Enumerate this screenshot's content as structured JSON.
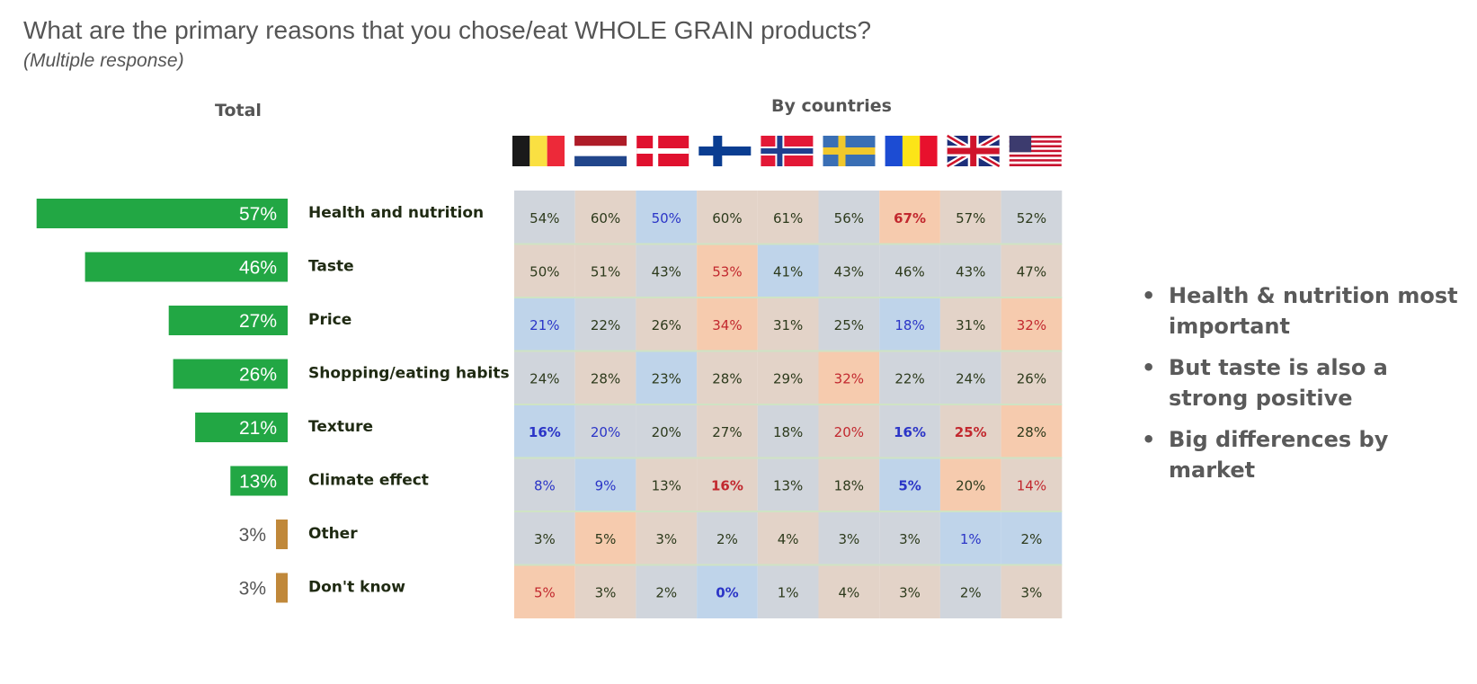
{
  "title": "What are the primary reasons that you chose/eat WHOLE GRAIN products?",
  "subtitle": "(Multiple response)",
  "total_header": "Total",
  "countries_header": "By countries",
  "flags": [
    "belgium-flag",
    "netherlands-flag",
    "denmark-flag",
    "finland-flag",
    "norway-flag",
    "sweden-flag",
    "romania-flag",
    "uk-flag",
    "usa-flag"
  ],
  "bullets": [
    "Health & nutrition most important",
    "But taste is also a strong positive",
    "Big differences by market"
  ],
  "colors": {
    "bar_main": "#22a744",
    "bar_small": "#c0883a",
    "cell_gray": "#d0d5dc",
    "cell_tan": "#e3d3c8",
    "cell_blue": "#bfd4ea",
    "cell_orange": "#f6cbae",
    "text_dark": "#2d3a1c",
    "text_blue": "#2b35c7",
    "text_red": "#c2282e",
    "label_dark": "#1f2a12"
  },
  "chart_data": {
    "type": "bar",
    "categories": [
      "Health and nutrition",
      "Taste",
      "Price",
      "Shopping/eating habits",
      "Texture",
      "Climate effect",
      "Other",
      "Don't know"
    ],
    "values": [
      57,
      46,
      27,
      26,
      21,
      13,
      3,
      3
    ],
    "value_labels": [
      "57%",
      "46%",
      "27%",
      "26%",
      "21%",
      "13%",
      "3%",
      "3%"
    ],
    "table": {
      "rows": [
        [
          "54%",
          "60%",
          "50%",
          "60%",
          "61%",
          "56%",
          "67%",
          "57%",
          "52%"
        ],
        [
          "50%",
          "51%",
          "43%",
          "53%",
          "41%",
          "43%",
          "46%",
          "43%",
          "47%"
        ],
        [
          "21%",
          "22%",
          "26%",
          "34%",
          "31%",
          "25%",
          "18%",
          "31%",
          "32%"
        ],
        [
          "24%",
          "28%",
          "23%",
          "28%",
          "29%",
          "32%",
          "22%",
          "24%",
          "26%"
        ],
        [
          "16%",
          "20%",
          "20%",
          "27%",
          "18%",
          "20%",
          "16%",
          "25%",
          "28%"
        ],
        [
          "8%",
          "9%",
          "13%",
          "16%",
          "13%",
          "18%",
          "5%",
          "20%",
          "14%"
        ],
        [
          "3%",
          "5%",
          "3%",
          "2%",
          "4%",
          "3%",
          "3%",
          "1%",
          "2%"
        ],
        [
          "5%",
          "3%",
          "2%",
          "0%",
          "1%",
          "4%",
          "3%",
          "2%",
          "3%"
        ]
      ],
      "bg": [
        [
          "g",
          "t",
          "b",
          "t",
          "t",
          "g",
          "o",
          "t",
          "g"
        ],
        [
          "t",
          "t",
          "g",
          "o",
          "b",
          "g",
          "g",
          "g",
          "t"
        ],
        [
          "b",
          "g",
          "t",
          "o",
          "t",
          "g",
          "b",
          "t",
          "o"
        ],
        [
          "g",
          "t",
          "b",
          "t",
          "t",
          "o",
          "g",
          "g",
          "t"
        ],
        [
          "b",
          "g",
          "g",
          "t",
          "g",
          "t",
          "g",
          "t",
          "o"
        ],
        [
          "g",
          "b",
          "t",
          "t",
          "g",
          "t",
          "b",
          "o",
          "t"
        ],
        [
          "g",
          "o",
          "t",
          "g",
          "t",
          "g",
          "g",
          "b",
          "b"
        ],
        [
          "o",
          "t",
          "g",
          "b",
          "g",
          "t",
          "t",
          "g",
          "t"
        ]
      ],
      "fg": [
        [
          "d",
          "d",
          "b",
          "d",
          "d",
          "d",
          "R",
          "d",
          "d"
        ],
        [
          "d",
          "d",
          "d",
          "r",
          "d",
          "d",
          "d",
          "d",
          "d"
        ],
        [
          "b",
          "d",
          "d",
          "r",
          "d",
          "d",
          "b",
          "d",
          "r"
        ],
        [
          "d",
          "d",
          "d",
          "d",
          "d",
          "r",
          "d",
          "d",
          "d"
        ],
        [
          "B",
          "b",
          "d",
          "d",
          "d",
          "r",
          "B",
          "R",
          "d"
        ],
        [
          "b",
          "b",
          "d",
          "R",
          "d",
          "d",
          "B",
          "d",
          "r"
        ],
        [
          "d",
          "d",
          "d",
          "d",
          "d",
          "d",
          "d",
          "b",
          "d"
        ],
        [
          "r",
          "d",
          "d",
          "B",
          "d",
          "d",
          "d",
          "d",
          "d"
        ]
      ]
    }
  }
}
